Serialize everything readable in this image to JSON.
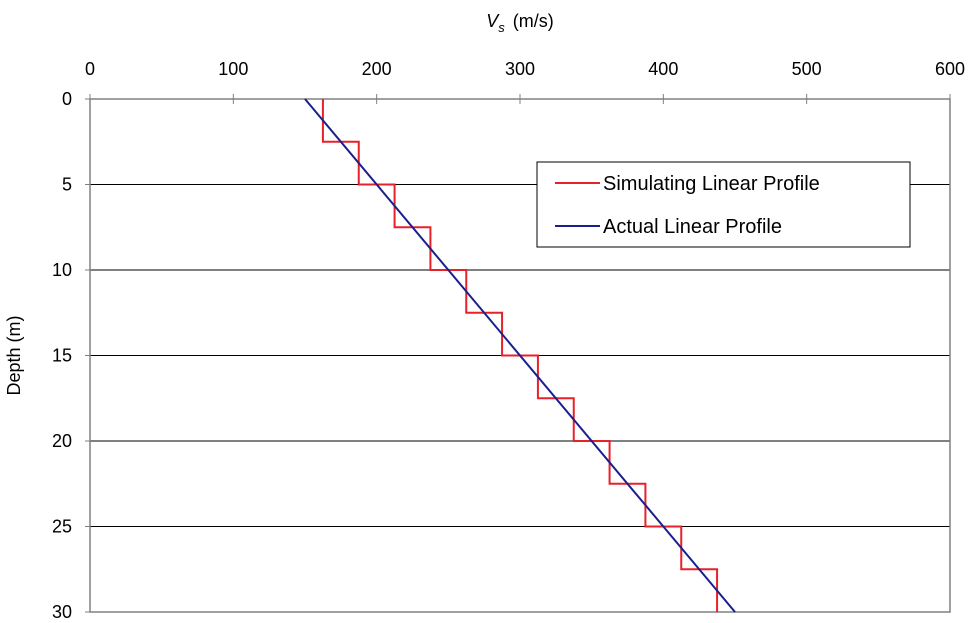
{
  "chart_data": {
    "type": "line",
    "title": "",
    "xlabel": {
      "symbol": "V",
      "subscript": "s",
      "unit": "(m/s)"
    },
    "ylabel": "Depth (m)",
    "xlim": [
      0,
      600
    ],
    "ylim": [
      0,
      30
    ],
    "y_inverted": true,
    "x_axis_position": "top",
    "x_ticks": [
      "0",
      "100",
      "200",
      "300",
      "400",
      "500",
      "600"
    ],
    "y_ticks": [
      "0",
      "5",
      "10",
      "15",
      "20",
      "25",
      "30"
    ],
    "grid": "horizontal",
    "legend_position": "upper-right",
    "series": [
      {
        "name": "Simulating Linear Profile",
        "color": "#e8202a",
        "style": "step",
        "x": [
          162.5,
          162.5,
          187.5,
          187.5,
          212.5,
          212.5,
          237.5,
          237.5,
          262.5,
          262.5,
          287.5,
          287.5,
          312.5,
          312.5,
          337.5,
          337.5,
          362.5,
          362.5,
          387.5,
          387.5,
          412.5,
          412.5,
          437.5,
          437.5
        ],
        "y": [
          0,
          2.5,
          2.5,
          5,
          5,
          7.5,
          7.5,
          10,
          10,
          12.5,
          12.5,
          15,
          15,
          17.5,
          17.5,
          20,
          20,
          22.5,
          22.5,
          25,
          25,
          27.5,
          27.5,
          30
        ]
      },
      {
        "name": "Actual Linear Profile",
        "color": "#1a1f8c",
        "style": "line",
        "x": [
          150,
          450
        ],
        "y": [
          0,
          30
        ]
      }
    ]
  }
}
